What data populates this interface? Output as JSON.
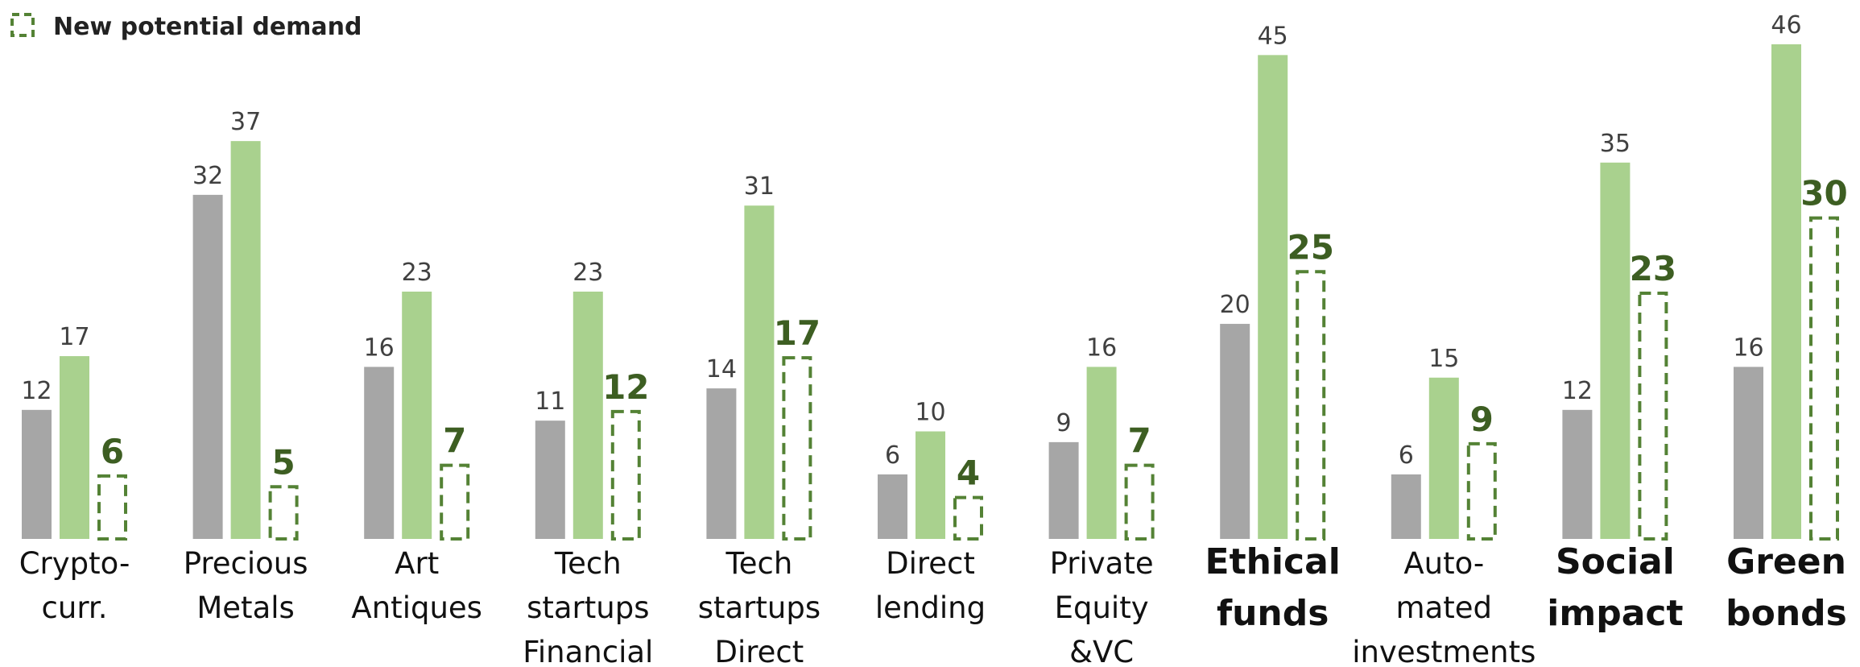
{
  "chart_data": {
    "type": "bar",
    "categories": [
      [
        "Crypto-",
        "curr."
      ],
      [
        "Precious",
        "Metals"
      ],
      [
        "Art",
        "Antiques"
      ],
      [
        "Tech",
        "startups",
        "Financial"
      ],
      [
        "Tech",
        "startups",
        "Direct"
      ],
      [
        "Direct",
        "lending"
      ],
      [
        "Private",
        "Equity",
        "&VC"
      ],
      [
        "Ethical",
        "funds"
      ],
      [
        "Auto-",
        "mated",
        "investments"
      ],
      [
        "Social",
        "impact"
      ],
      [
        "Green",
        "bonds"
      ]
    ],
    "bold_categories": [
      7,
      9,
      10
    ],
    "series": [
      {
        "color": "#a6a6a6",
        "values": [
          12,
          32,
          16,
          11,
          14,
          6,
          9,
          20,
          6,
          12,
          16
        ]
      },
      {
        "color": "#a9d18e",
        "values": [
          17,
          37,
          23,
          23,
          31,
          10,
          16,
          45,
          15,
          35,
          46
        ]
      },
      {
        "name": "New potential demand",
        "color": "#548235",
        "dashed": true,
        "values": [
          6,
          5,
          7,
          12,
          17,
          4,
          7,
          25,
          9,
          23,
          30
        ]
      }
    ],
    "ylim": [
      0,
      46
    ],
    "legend": "top-left"
  }
}
